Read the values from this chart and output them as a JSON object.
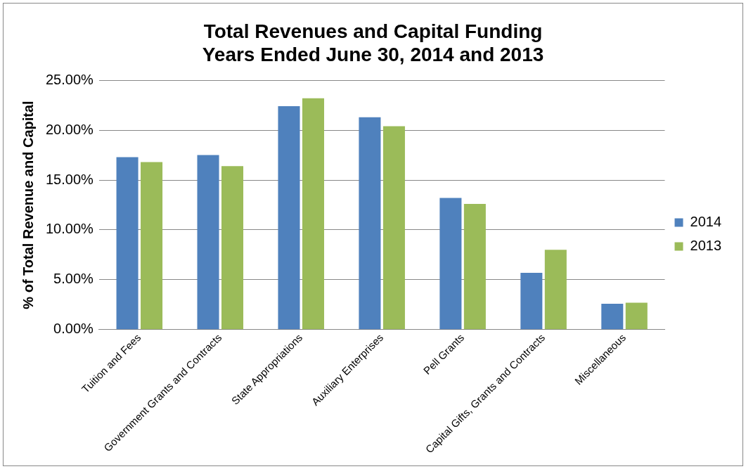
{
  "chart_data": {
    "type": "bar",
    "title": "Total Revenues and Capital Funding\nYears Ended June 30, 2014 and 2013",
    "ylabel": "% of Total Revenue and Capital",
    "categories": [
      "Tuition and Fees",
      "Government Grants and Contracts",
      "State Appropriations",
      "Auxiliary Enterprises",
      "Pell Grants",
      "Capital Gifts, Grants and Contracts",
      "Miscellaneous"
    ],
    "series": [
      {
        "name": "2014",
        "color": "#4f81bd",
        "values": [
          17.3,
          17.5,
          22.4,
          21.3,
          13.2,
          5.7,
          2.6
        ]
      },
      {
        "name": "2013",
        "color": "#9bbb59",
        "values": [
          16.8,
          16.4,
          23.2,
          20.4,
          12.6,
          8.0,
          2.7
        ]
      }
    ],
    "ylim": [
      0,
      25
    ],
    "yticks": [
      {
        "value": 0,
        "label": "0.00%"
      },
      {
        "value": 5,
        "label": "5.00%"
      },
      {
        "value": 10,
        "label": "10.00%"
      },
      {
        "value": 15,
        "label": "15.00%"
      },
      {
        "value": 20,
        "label": "20.00%"
      },
      {
        "value": 25,
        "label": "25.00%"
      }
    ],
    "grid": "y",
    "legend": "right"
  }
}
